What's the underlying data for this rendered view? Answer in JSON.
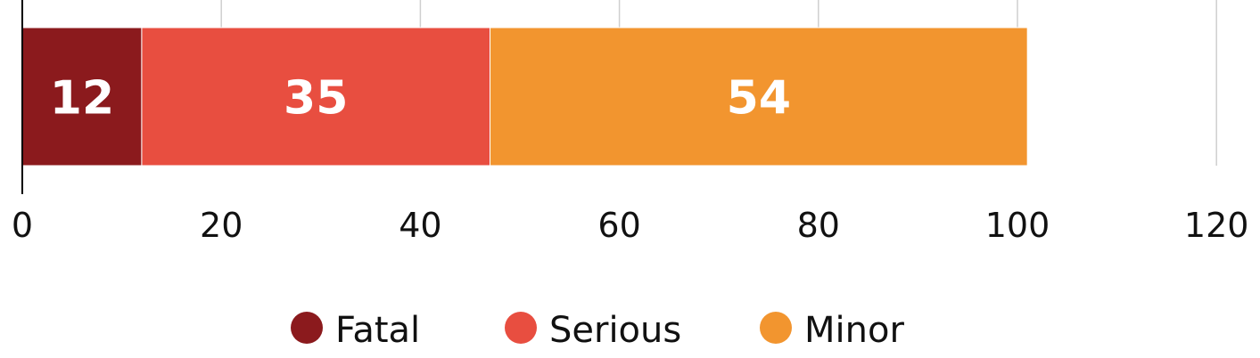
{
  "chart_data": {
    "type": "bar",
    "orientation": "horizontal",
    "stacked": true,
    "categories": [
      ""
    ],
    "series": [
      {
        "name": "Fatal",
        "values": [
          12
        ],
        "color": "#8b1a1d"
      },
      {
        "name": "Serious",
        "values": [
          35
        ],
        "color": "#e84e40"
      },
      {
        "name": "Minor",
        "values": [
          54
        ],
        "color": "#f2952f"
      }
    ],
    "xlim": [
      0,
      120
    ],
    "xticks": [
      0,
      20,
      40,
      60,
      80,
      100,
      120
    ],
    "grid": true,
    "data_labels": true,
    "legend": "bottom-center",
    "title": "",
    "xlabel": "",
    "ylabel": ""
  }
}
